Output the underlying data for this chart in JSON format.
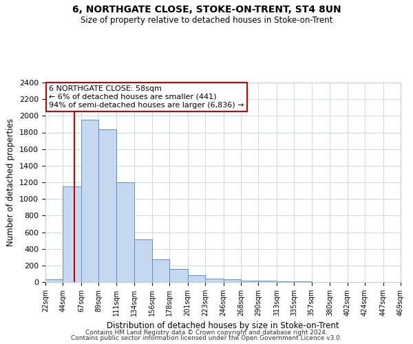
{
  "title": "6, NORTHGATE CLOSE, STOKE-ON-TRENT, ST4 8UN",
  "subtitle": "Size of property relative to detached houses in Stoke-on-Trent",
  "xlabel": "Distribution of detached houses by size in Stoke-on-Trent",
  "ylabel": "Number of detached properties",
  "bar_values": [
    35,
    1150,
    1950,
    1840,
    1200,
    510,
    270,
    155,
    80,
    45,
    35,
    20,
    15,
    10,
    5,
    3,
    2,
    2,
    1,
    1
  ],
  "edges": [
    22,
    44,
    67,
    89,
    111,
    134,
    156,
    178,
    201,
    223,
    246,
    268,
    290,
    313,
    335,
    357,
    380,
    402,
    424,
    447,
    469
  ],
  "tick_labels": [
    "22sqm",
    "44sqm",
    "67sqm",
    "89sqm",
    "111sqm",
    "134sqm",
    "156sqm",
    "178sqm",
    "201sqm",
    "223sqm",
    "246sqm",
    "268sqm",
    "290sqm",
    "313sqm",
    "335sqm",
    "357sqm",
    "380sqm",
    "402sqm",
    "424sqm",
    "447sqm",
    "469sqm"
  ],
  "bar_color": "#c5d8f0",
  "bar_edge_color": "#5b8ec4",
  "red_line_x": 58,
  "annotation_text": "6 NORTHGATE CLOSE: 58sqm\n← 6% of detached houses are smaller (441)\n94% of semi-detached houses are larger (6,836) →",
  "annotation_box_color": "#ffffff",
  "annotation_box_edge": "#cc0000",
  "ylim": [
    0,
    2400
  ],
  "yticks": [
    0,
    200,
    400,
    600,
    800,
    1000,
    1200,
    1400,
    1600,
    1800,
    2000,
    2200,
    2400
  ],
  "footer1": "Contains HM Land Registry data © Crown copyright and database right 2024.",
  "footer2": "Contains public sector information licensed under the Open Government Licence v3.0.",
  "background_color": "#ffffff",
  "grid_color": "#c8d8ea"
}
